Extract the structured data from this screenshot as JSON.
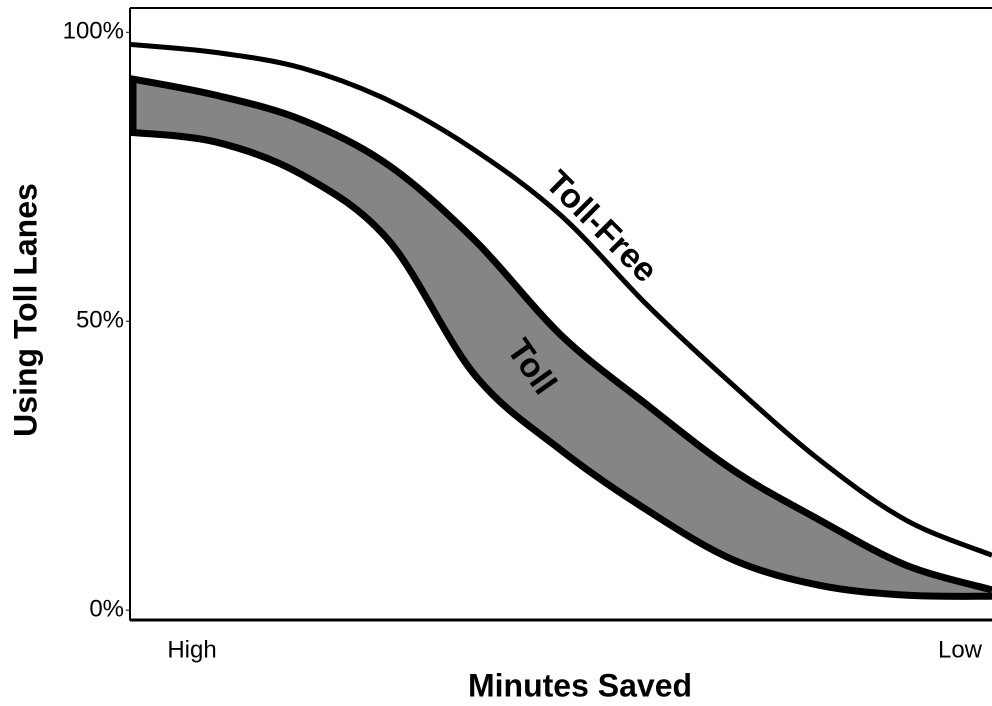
{
  "chart_data": {
    "type": "line",
    "x_label": "Minutes Saved",
    "y_label": "Using Toll Lanes",
    "x": [
      0,
      1,
      2,
      3,
      4,
      5,
      6,
      7,
      8,
      9,
      10
    ],
    "xlim": [
      0,
      10
    ],
    "xticks": [
      {
        "value": 0,
        "label": "High"
      },
      {
        "value": 10,
        "label": "Low"
      }
    ],
    "ylim": [
      -1.7,
      104.2
    ],
    "yticks": [
      {
        "value": 0,
        "label": "0%"
      },
      {
        "value": 50,
        "label": "50%"
      },
      {
        "value": 100,
        "label": "100%"
      }
    ],
    "series": [
      {
        "name": "Toll-Free",
        "color": "#ffffff",
        "values": [
          97.9,
          96.5,
          93.8,
          88.2,
          79.6,
          68.3,
          52.8,
          38.9,
          26,
          15.6,
          9.5
        ]
      },
      {
        "name": "Toll",
        "color": "#858585",
        "values": [
          92,
          89.1,
          84.8,
          77,
          64,
          47.6,
          35.5,
          24.2,
          15.6,
          7.8,
          3.5
        ],
        "lower": [
          82.7,
          81,
          75.3,
          64,
          40.7,
          27.7,
          17.3,
          8.7,
          4.3,
          2.6,
          2.4
        ]
      }
    ]
  }
}
